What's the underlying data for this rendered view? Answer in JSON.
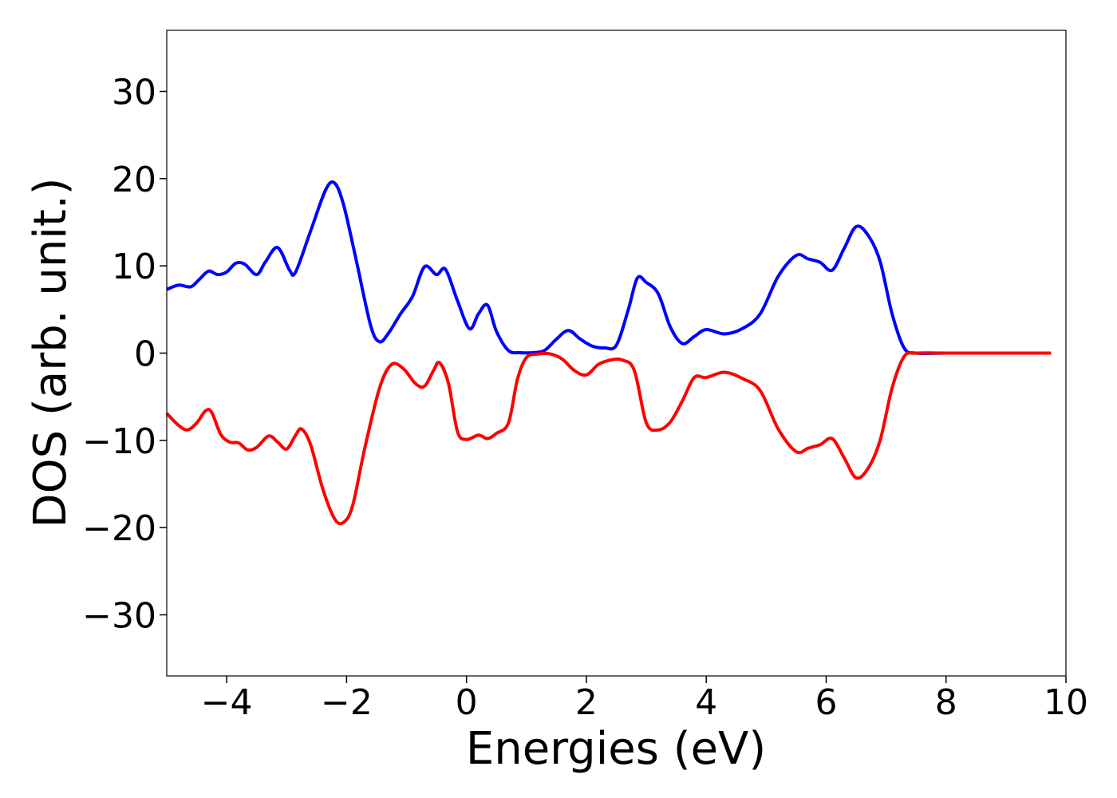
{
  "chart_data": {
    "type": "line",
    "title": "",
    "xlabel": "Energies (eV)",
    "ylabel": "DOS (arb. unit.)",
    "xlim": [
      -5,
      10
    ],
    "ylim": [
      -37,
      37
    ],
    "xticks": [
      -4,
      -2,
      0,
      2,
      4,
      6,
      8,
      10
    ],
    "xtick_labels": [
      "−4",
      "−2",
      "0",
      "2",
      "4",
      "6",
      "8",
      "10"
    ],
    "yticks": [
      30,
      20,
      10,
      0,
      -10,
      -20,
      -30
    ],
    "ytick_labels": [
      "30",
      "20",
      "10",
      "0",
      "−10",
      "−20",
      "−30"
    ],
    "grid": false,
    "legend": false,
    "series": [
      {
        "color": "#0000ff",
        "x": [
          -5.0,
          -4.8,
          -4.6,
          -4.45,
          -4.3,
          -4.15,
          -4.0,
          -3.85,
          -3.7,
          -3.5,
          -3.35,
          -3.15,
          -2.95,
          -2.85,
          -2.6,
          -2.35,
          -2.2,
          -2.05,
          -1.85,
          -1.6,
          -1.45,
          -1.3,
          -1.1,
          -0.9,
          -0.7,
          -0.5,
          -0.35,
          -0.15,
          0.05,
          0.2,
          0.35,
          0.5,
          0.7,
          0.9,
          1.1,
          1.3,
          1.5,
          1.7,
          1.9,
          2.1,
          2.3,
          2.5,
          2.7,
          2.85,
          3.0,
          3.2,
          3.4,
          3.6,
          3.8,
          4.0,
          4.3,
          4.6,
          4.9,
          5.2,
          5.5,
          5.7,
          5.9,
          6.1,
          6.3,
          6.5,
          6.7,
          6.9,
          7.1,
          7.3,
          7.5,
          8.0,
          9.0,
          9.75
        ],
        "y": [
          7.3,
          7.8,
          7.6,
          8.5,
          9.4,
          9.0,
          9.3,
          10.3,
          10.2,
          9.0,
          10.5,
          12.1,
          9.5,
          9.3,
          14.0,
          18.7,
          19.5,
          17.0,
          11.0,
          3.2,
          1.3,
          2.3,
          4.5,
          6.5,
          9.9,
          9.0,
          9.6,
          6.0,
          2.8,
          4.5,
          5.5,
          2.5,
          0.3,
          0.05,
          0.05,
          0.3,
          1.6,
          2.6,
          1.6,
          0.8,
          0.6,
          0.9,
          5.0,
          8.6,
          8.1,
          6.8,
          3.0,
          1.1,
          1.9,
          2.7,
          2.2,
          2.8,
          4.5,
          8.8,
          11.2,
          10.8,
          10.4,
          9.5,
          12.0,
          14.5,
          13.5,
          10.5,
          4.5,
          0.6,
          0.0,
          0.0,
          0.0,
          0.0
        ]
      },
      {
        "color": "#ff0000",
        "x": [
          -5.0,
          -4.8,
          -4.65,
          -4.5,
          -4.35,
          -4.25,
          -4.1,
          -3.95,
          -3.8,
          -3.65,
          -3.5,
          -3.3,
          -3.15,
          -3.0,
          -2.85,
          -2.75,
          -2.6,
          -2.4,
          -2.2,
          -2.05,
          -1.9,
          -1.7,
          -1.45,
          -1.25,
          -1.05,
          -0.85,
          -0.7,
          -0.55,
          -0.45,
          -0.3,
          -0.15,
          0.0,
          0.2,
          0.35,
          0.5,
          0.7,
          0.85,
          1.0,
          1.2,
          1.4,
          1.6,
          1.8,
          2.0,
          2.2,
          2.4,
          2.6,
          2.8,
          3.0,
          3.2,
          3.4,
          3.6,
          3.8,
          4.0,
          4.3,
          4.6,
          4.9,
          5.2,
          5.5,
          5.7,
          5.9,
          6.1,
          6.3,
          6.5,
          6.7,
          6.9,
          7.1,
          7.3,
          7.5,
          8.0,
          9.0,
          9.75
        ],
        "y": [
          -6.9,
          -8.3,
          -8.8,
          -8.0,
          -6.6,
          -6.8,
          -9.3,
          -10.2,
          -10.3,
          -11.1,
          -10.8,
          -9.5,
          -10.2,
          -11.0,
          -9.4,
          -8.7,
          -10.5,
          -15.5,
          -19.0,
          -19.4,
          -17.5,
          -11.0,
          -4.0,
          -1.3,
          -1.8,
          -3.5,
          -3.8,
          -2.0,
          -1.1,
          -3.5,
          -9.0,
          -9.9,
          -9.4,
          -9.8,
          -9.2,
          -8.0,
          -3.0,
          -0.5,
          -0.1,
          -0.1,
          -0.7,
          -2.0,
          -2.5,
          -1.3,
          -0.8,
          -0.8,
          -2.0,
          -8.0,
          -8.8,
          -7.9,
          -5.5,
          -2.8,
          -2.8,
          -2.2,
          -2.9,
          -4.3,
          -8.7,
          -11.3,
          -10.9,
          -10.5,
          -9.8,
          -12.0,
          -14.3,
          -13.2,
          -10.0,
          -4.0,
          -0.4,
          0.0,
          0.0,
          0.0,
          0.0
        ]
      }
    ]
  }
}
